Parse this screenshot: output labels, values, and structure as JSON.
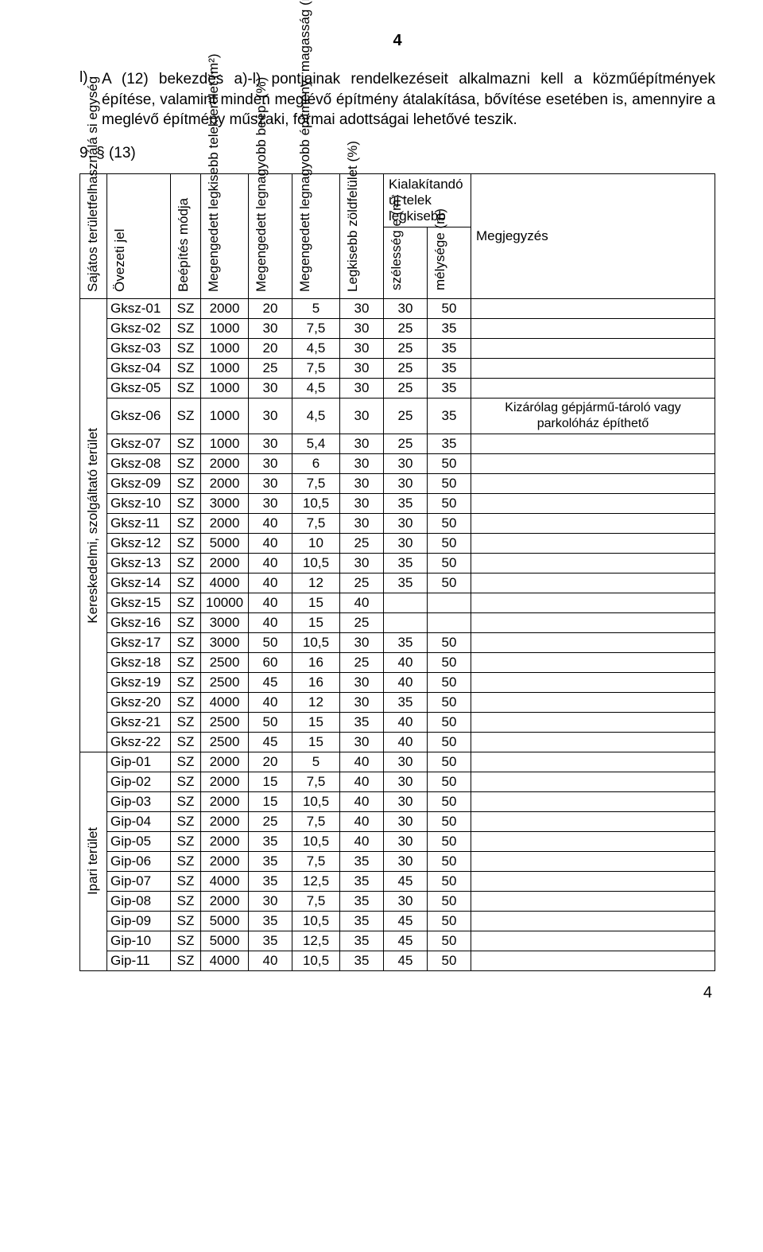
{
  "page_number_top": "4",
  "page_number_bottom": "4",
  "paragraph_marker": "l)",
  "paragraph_text": "A (12) bekezdés a)-l) pontjainak rendelkezéseit alkalmazni kell a közműépítmények építése, valamint minden meglévő építmény átalakítása, bővítése esetében is, amennyire a meglévő építmény műszaki, formai adottságai lehetővé teszik.",
  "section_num": "9. § (13)",
  "col_header_group": "Kialakítandó új telek legkisebb",
  "col_headers": {
    "c0": "Sajátos területfelhasználá si egység",
    "c1": "Övezeti jel",
    "c2": "Beépítés módja",
    "c3": "Megengedett legkisebb telekterület (m²)",
    "c4": "Megengedett legnagyobb beép. (%)",
    "c5": "Megengedett legnagyobb építmény- magasság (m)",
    "c6": "Legkisebb zöldfelület (%)",
    "c7": "szélesség e (m)",
    "c8": "mélysége (m)",
    "c9": "Megjegyzés"
  },
  "row_groups": [
    {
      "label": "Kereskedelmi, szolgáltató terület",
      "span": 22
    },
    {
      "label": "Ipari terület",
      "span": 11
    }
  ],
  "rows": [
    [
      "Gksz-01",
      "SZ",
      "2000",
      "20",
      "5",
      "30",
      "30",
      "50",
      ""
    ],
    [
      "Gksz-02",
      "SZ",
      "1000",
      "30",
      "7,5",
      "30",
      "25",
      "35",
      ""
    ],
    [
      "Gksz-03",
      "SZ",
      "1000",
      "20",
      "4,5",
      "30",
      "25",
      "35",
      ""
    ],
    [
      "Gksz-04",
      "SZ",
      "1000",
      "25",
      "7,5",
      "30",
      "25",
      "35",
      ""
    ],
    [
      "Gksz-05",
      "SZ",
      "1000",
      "30",
      "4,5",
      "30",
      "25",
      "35",
      ""
    ],
    [
      "Gksz-06",
      "SZ",
      "1000",
      "30",
      "4,5",
      "30",
      "25",
      "35",
      "Kizárólag gépjármű-tároló vagy parkolóház építhető"
    ],
    [
      "Gksz-07",
      "SZ",
      "1000",
      "30",
      "5,4",
      "30",
      "25",
      "35",
      ""
    ],
    [
      "Gksz-08",
      "SZ",
      "2000",
      "30",
      "6",
      "30",
      "30",
      "50",
      ""
    ],
    [
      "Gksz-09",
      "SZ",
      "2000",
      "30",
      "7,5",
      "30",
      "30",
      "50",
      ""
    ],
    [
      "Gksz-10",
      "SZ",
      "3000",
      "30",
      "10,5",
      "30",
      "35",
      "50",
      ""
    ],
    [
      "Gksz-11",
      "SZ",
      "2000",
      "40",
      "7,5",
      "30",
      "30",
      "50",
      ""
    ],
    [
      "Gksz-12",
      "SZ",
      "5000",
      "40",
      "10",
      "25",
      "30",
      "50",
      ""
    ],
    [
      "Gksz-13",
      "SZ",
      "2000",
      "40",
      "10,5",
      "30",
      "35",
      "50",
      ""
    ],
    [
      "Gksz-14",
      "SZ",
      "4000",
      "40",
      "12",
      "25",
      "35",
      "50",
      ""
    ],
    [
      "Gksz-15",
      "SZ",
      "10000",
      "40",
      "15",
      "40",
      "",
      "",
      ""
    ],
    [
      "Gksz-16",
      "SZ",
      "3000",
      "40",
      "15",
      "25",
      "",
      "",
      ""
    ],
    [
      "Gksz-17",
      "SZ",
      "3000",
      "50",
      "10,5",
      "30",
      "35",
      "50",
      ""
    ],
    [
      "Gksz-18",
      "SZ",
      "2500",
      "60",
      "16",
      "25",
      "40",
      "50",
      ""
    ],
    [
      "Gksz-19",
      "SZ",
      "2500",
      "45",
      "16",
      "30",
      "40",
      "50",
      ""
    ],
    [
      "Gksz-20",
      "SZ",
      "4000",
      "40",
      "12",
      "30",
      "35",
      "50",
      ""
    ],
    [
      "Gksz-21",
      "SZ",
      "2500",
      "50",
      "15",
      "35",
      "40",
      "50",
      ""
    ],
    [
      "Gksz-22",
      "SZ",
      "2500",
      "45",
      "15",
      "30",
      "40",
      "50",
      ""
    ],
    [
      "Gip-01",
      "SZ",
      "2000",
      "20",
      "5",
      "40",
      "30",
      "50",
      ""
    ],
    [
      "Gip-02",
      "SZ",
      "2000",
      "15",
      "7,5",
      "40",
      "30",
      "50",
      ""
    ],
    [
      "Gip-03",
      "SZ",
      "2000",
      "15",
      "10,5",
      "40",
      "30",
      "50",
      ""
    ],
    [
      "Gip-04",
      "SZ",
      "2000",
      "25",
      "7,5",
      "40",
      "30",
      "50",
      ""
    ],
    [
      "Gip-05",
      "SZ",
      "2000",
      "35",
      "10,5",
      "40",
      "30",
      "50",
      ""
    ],
    [
      "Gip-06",
      "SZ",
      "2000",
      "35",
      "7,5",
      "35",
      "30",
      "50",
      ""
    ],
    [
      "Gip-07",
      "SZ",
      "4000",
      "35",
      "12,5",
      "35",
      "45",
      "50",
      ""
    ],
    [
      "Gip-08",
      "SZ",
      "2000",
      "30",
      "7,5",
      "35",
      "30",
      "50",
      ""
    ],
    [
      "Gip-09",
      "SZ",
      "5000",
      "35",
      "10,5",
      "35",
      "45",
      "50",
      ""
    ],
    [
      "Gip-10",
      "SZ",
      "5000",
      "35",
      "12,5",
      "35",
      "45",
      "50",
      ""
    ],
    [
      "Gip-11",
      "SZ",
      "4000",
      "40",
      "10,5",
      "35",
      "45",
      "50",
      ""
    ]
  ]
}
